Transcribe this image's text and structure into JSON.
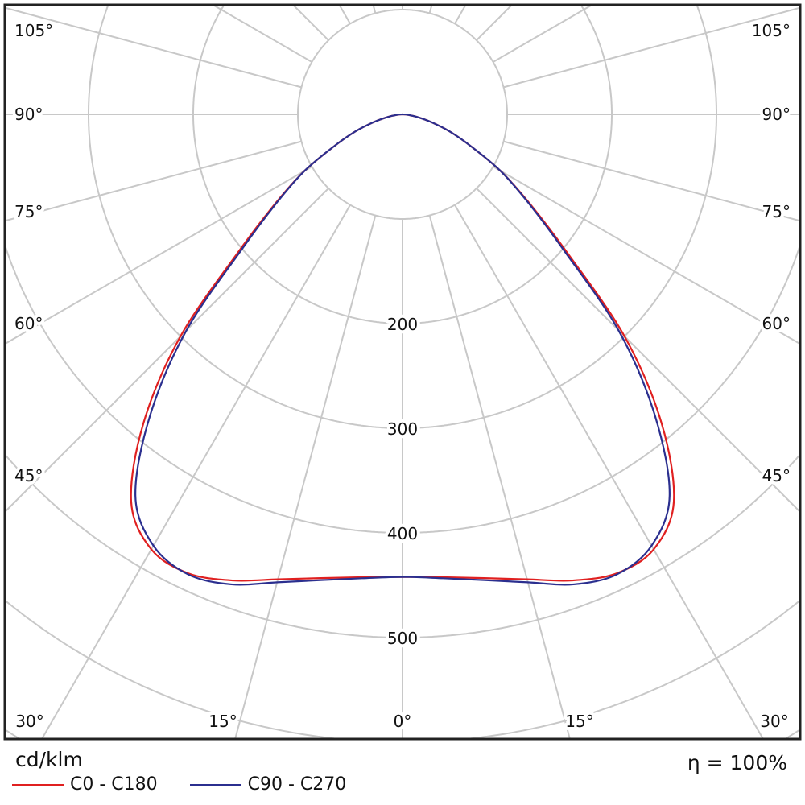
{
  "chart_data": {
    "type": "line",
    "subtype": "polar-intensity-distribution",
    "unit_label": "cd/klm",
    "efficiency_label": "η = 100%",
    "radial_ticks": [
      100,
      200,
      300,
      400,
      500,
      600,
      700,
      800
    ],
    "radial_tick_labels": [
      "200",
      "300",
      "400",
      "500"
    ],
    "radial_label_values": [
      200,
      300,
      400,
      500
    ],
    "angle_labels_left": [
      "105°",
      "90°",
      "75°",
      "60°",
      "45°"
    ],
    "angle_labels_right": [
      "105°",
      "90°",
      "75°",
      "60°",
      "45°"
    ],
    "angle_labels_bottom": [
      "30°",
      "15°",
      "0°",
      "15°",
      "30°"
    ],
    "angle_grid_step_deg": 15,
    "angles_deg": [
      0,
      5,
      10,
      15,
      20,
      25,
      30,
      35,
      40,
      45,
      50,
      55,
      60,
      65,
      70,
      75,
      80,
      85,
      90
    ],
    "series": [
      {
        "name": "C0 - C180",
        "color": "#e02020",
        "values": [
          442,
          444,
          450,
          460,
          474,
          484,
          480,
          452,
          385,
          300,
          205,
          148,
          108,
          72,
          48,
          28,
          14,
          5,
          0
        ]
      },
      {
        "name": "C90 - C270",
        "color": "#2b2f8f",
        "values": [
          442,
          445,
          452,
          463,
          478,
          485,
          476,
          445,
          375,
          292,
          200,
          146,
          108,
          72,
          48,
          28,
          14,
          5,
          0
        ]
      }
    ],
    "grid": true,
    "legend_position": "bottom-left"
  }
}
